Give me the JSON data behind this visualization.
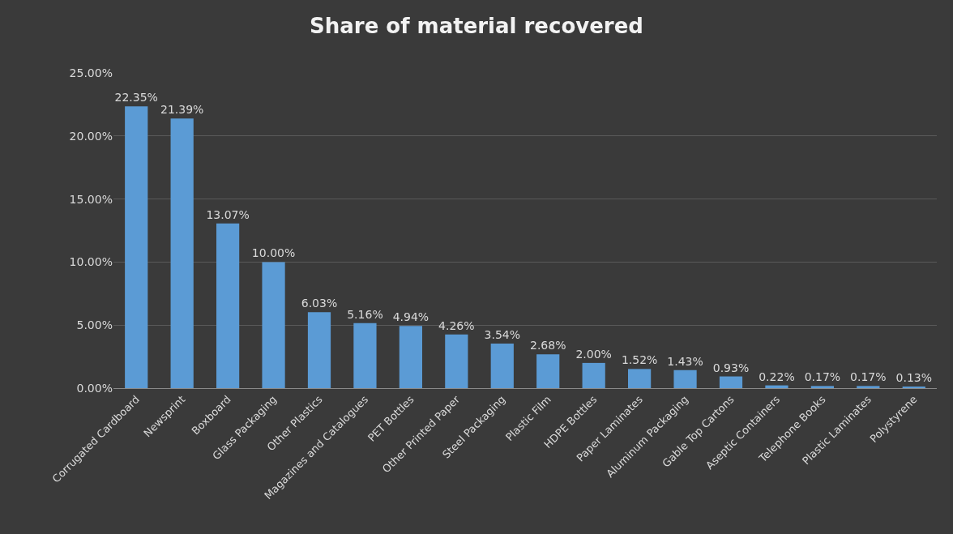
{
  "chart_data": {
    "type": "bar",
    "title": "Share of material recovered",
    "categories": [
      "Corrugated Cardboard",
      "Newsprint",
      "Boxboard",
      "Glass Packaging",
      "Other Plastics",
      "Magazines and Catalogues",
      "PET Bottles",
      "Other Printed Paper",
      "Steel Packaging",
      "Plastic Film",
      "HDPE Bottles",
      "Paper Laminates",
      "Aluminum Packaging",
      "Gable Top Cartons",
      "Aseptic Containers",
      "Telephone Books",
      "Plastic Laminates",
      "Polystyrene"
    ],
    "values": [
      22.35,
      21.39,
      13.07,
      10.0,
      6.03,
      5.16,
      4.94,
      4.26,
      3.54,
      2.68,
      2.0,
      1.52,
      1.43,
      0.93,
      0.22,
      0.17,
      0.17,
      0.13
    ],
    "value_labels": [
      "22.35%",
      "21.39%",
      "13.07%",
      "10.00%",
      "6.03%",
      "5.16%",
      "4.94%",
      "4.26%",
      "3.54%",
      "2.68%",
      "2.00%",
      "1.52%",
      "1.43%",
      "0.93%",
      "0.22%",
      "0.17%",
      "0.17%",
      "0.13%"
    ],
    "color": "#5b9bd5",
    "ylim": [
      0,
      25
    ],
    "yticks": [
      {
        "value": 0,
        "label": "0.00%"
      },
      {
        "value": 5,
        "label": "5.00%"
      },
      {
        "value": 10,
        "label": "10.00%"
      },
      {
        "value": 15,
        "label": "15.00%"
      },
      {
        "value": 20,
        "label": "20.00%"
      },
      {
        "value": 25,
        "label": "25.00%"
      }
    ],
    "grid": "y"
  }
}
